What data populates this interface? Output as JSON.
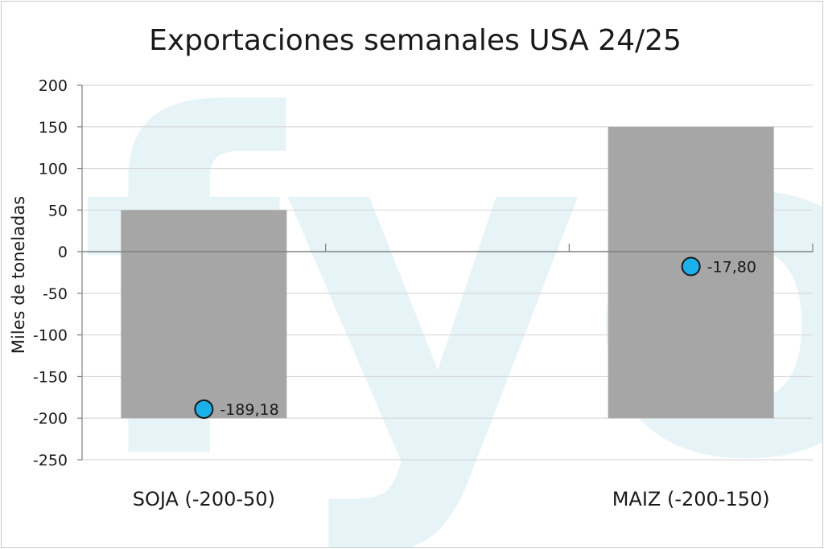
{
  "chart_data": {
    "type": "bar",
    "title": "Exportaciones semanales USA 24/25",
    "ylabel": "Miles de toneladas",
    "xlabel": "",
    "ylim": [
      -250,
      200
    ],
    "yticks": [
      "200",
      "150",
      "100",
      "50",
      "0",
      "-50",
      "-100",
      "-150",
      "-200",
      "-250"
    ],
    "ytick_values": [
      200,
      150,
      100,
      50,
      0,
      -50,
      -100,
      -150,
      -200,
      -250
    ],
    "grid": true,
    "categories": [
      "SOJA (-200-50)",
      "MAIZ (-200-150)"
    ],
    "ranges": [
      {
        "low": -200,
        "high": 50
      },
      {
        "low": -200,
        "high": 150
      }
    ],
    "points": [
      {
        "value": -189.18,
        "label": "-189,18"
      },
      {
        "value": -17.8,
        "label": "-17,80"
      }
    ],
    "colors": {
      "bar": "#a6a6a6",
      "point_fill": "#1ab0ea",
      "point_stroke": "#1a1a1a",
      "gridline": "#d9d9d9",
      "axis": "#7f7f7f",
      "watermark": "#e6f3f7",
      "text": "#1a1a1a"
    },
    "watermark": "fyo"
  }
}
